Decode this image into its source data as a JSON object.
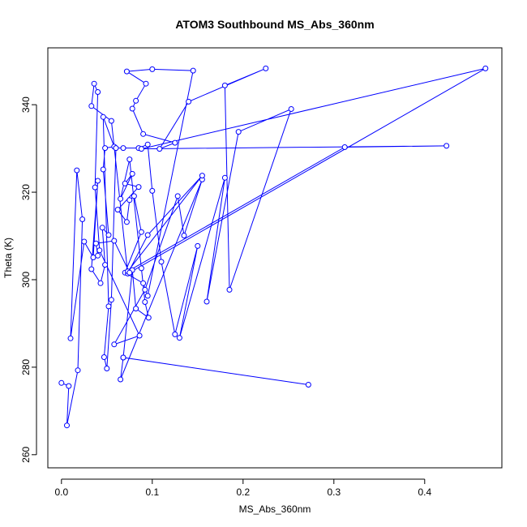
{
  "chart_data": {
    "type": "line",
    "title": "ATOM3 Southbound MS_Abs_360nm",
    "xlabel": "MS_Abs_360nm",
    "ylabel": "Theta (K)",
    "xlim": [
      -0.015,
      0.485
    ],
    "ylim": [
      257,
      353
    ],
    "x_ticks": [
      0.0,
      0.1,
      0.2,
      0.3,
      0.4
    ],
    "x_tick_labels": [
      "0.0",
      "0.1",
      "0.2",
      "0.3",
      "0.4"
    ],
    "y_ticks": [
      260,
      280,
      300,
      320,
      340
    ],
    "y_tick_labels": [
      "260",
      "280",
      "300",
      "320",
      "340"
    ],
    "grid": false,
    "series": [
      {
        "color": "#0000ff",
        "marker": "open-circle",
        "points": [
          [
            0.0,
            276.4
          ],
          [
            0.008,
            275.7
          ],
          [
            0.006,
            266.7
          ],
          [
            0.018,
            279.3
          ],
          [
            0.023,
            313.8
          ],
          [
            0.017,
            325.0
          ],
          [
            0.01,
            286.6
          ],
          [
            0.025,
            308.7
          ],
          [
            0.035,
            305.1
          ],
          [
            0.04,
            322.6
          ],
          [
            0.033,
            302.4
          ],
          [
            0.043,
            299.2
          ],
          [
            0.048,
            303.4
          ],
          [
            0.045,
            311.9
          ],
          [
            0.052,
            310.2
          ],
          [
            0.046,
            325.2
          ],
          [
            0.048,
            330.1
          ],
          [
            0.058,
            330.4
          ],
          [
            0.046,
            337.2
          ],
          [
            0.052,
            293.9
          ],
          [
            0.047,
            282.3
          ],
          [
            0.05,
            279.7
          ],
          [
            0.055,
            295.4
          ],
          [
            0.06,
            330.1
          ],
          [
            0.068,
            330.1
          ],
          [
            0.085,
            330.1
          ],
          [
            0.095,
            330.9
          ],
          [
            0.1,
            320.3
          ],
          [
            0.11,
            304.1
          ],
          [
            0.125,
            287.5
          ],
          [
            0.15,
            307.7
          ],
          [
            0.13,
            286.7
          ],
          [
            0.18,
            323.3
          ],
          [
            0.16,
            295.0
          ],
          [
            0.195,
            333.8
          ],
          [
            0.253,
            339.0
          ],
          [
            0.185,
            297.7
          ],
          [
            0.18,
            344.4
          ],
          [
            0.225,
            348.3
          ],
          [
            0.14,
            340.7
          ],
          [
            0.108,
            329.9
          ],
          [
            0.125,
            331.3
          ],
          [
            0.09,
            333.3
          ],
          [
            0.078,
            339.1
          ],
          [
            0.082,
            340.9
          ],
          [
            0.093,
            344.8
          ],
          [
            0.072,
            347.6
          ],
          [
            0.1,
            348.1
          ],
          [
            0.145,
            347.8
          ],
          [
            0.095,
            296.3
          ],
          [
            0.09,
            299.2
          ],
          [
            0.07,
            301.6
          ],
          [
            0.088,
            310.9
          ],
          [
            0.08,
            319.1
          ],
          [
            0.075,
            318.2
          ],
          [
            0.072,
            313.2
          ],
          [
            0.062,
            316.0
          ],
          [
            0.085,
            321.2
          ],
          [
            0.07,
            322.0
          ],
          [
            0.078,
            324.2
          ],
          [
            0.065,
            318.5
          ],
          [
            0.075,
            327.5
          ],
          [
            0.088,
            302.6
          ],
          [
            0.092,
            294.9
          ],
          [
            0.096,
            291.3
          ],
          [
            0.082,
            293.4
          ],
          [
            0.078,
            302.2
          ],
          [
            0.068,
            282.2
          ],
          [
            0.272,
            276.0
          ],
          [
            0.068,
            282.2
          ],
          [
            0.065,
            277.2
          ],
          [
            0.155,
            322.9
          ],
          [
            0.135,
            310.1
          ],
          [
            0.128,
            319.1
          ],
          [
            0.092,
            297.7
          ],
          [
            0.058,
            285.2
          ],
          [
            0.086,
            287.2
          ],
          [
            0.042,
            306.7
          ],
          [
            0.037,
            321.1
          ],
          [
            0.04,
            342.9
          ],
          [
            0.036,
            344.8
          ],
          [
            0.033,
            339.7
          ],
          [
            0.055,
            336.3
          ],
          [
            0.073,
            301.4
          ],
          [
            0.095,
            310.2
          ],
          [
            0.155,
            323.8
          ],
          [
            0.073,
            301.9
          ],
          [
            0.312,
            330.3
          ],
          [
            0.424,
            330.6
          ],
          [
            0.088,
            329.9
          ],
          [
            0.467,
            348.3
          ],
          [
            0.075,
            301.6
          ],
          [
            0.058,
            308.9
          ],
          [
            0.038,
            308.3
          ],
          [
            0.04,
            305.5
          ]
        ]
      }
    ]
  }
}
